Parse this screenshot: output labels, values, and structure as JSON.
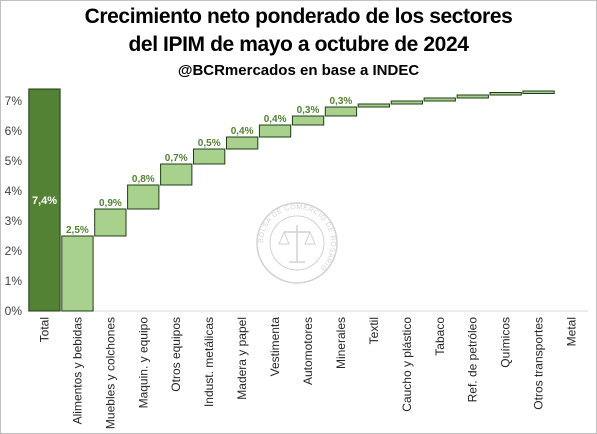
{
  "title_line1": "Crecimiento neto ponderado de los sectores",
  "title_line2": "del IPIM de mayo a octubre de 2024",
  "subtitle": "@BCRmercados en base a INDEC",
  "watermark": {
    "logo": "seal-icon",
    "text": "BOLSA DE COMERCIO DE ROSARIO"
  },
  "colors": {
    "total_bar": "#548235",
    "step_bar": "#a9d18e",
    "bar_border": "#1e3d14",
    "label": "#538135"
  },
  "chart_data": {
    "type": "bar",
    "subtype": "waterfall",
    "title": "Crecimiento neto ponderado de los sectores del IPIM de mayo a octubre de 2024",
    "subtitle": "@BCRmercados en base a INDEC",
    "xlabel": "",
    "ylabel": "",
    "ylim": [
      0,
      7.5
    ],
    "yticks": [
      "0%",
      "1%",
      "2%",
      "3%",
      "4%",
      "5%",
      "6%",
      "7%"
    ],
    "grid": false,
    "legend": "none",
    "categories": [
      "Total",
      "Alimentos y bebidas",
      "Muebles y colchones",
      "Maquin. y equipo",
      "Otros equipos",
      "Indust. metálicas",
      "Madera y papel",
      "Vestimenta",
      "Automotores",
      "Minerales",
      "Textil",
      "Caucho y plástico",
      "Tabaco",
      "Ref. de petróleo",
      "Químicos",
      "Otros transportes",
      "Metal"
    ],
    "values": [
      7.4,
      2.5,
      0.9,
      0.8,
      0.7,
      0.5,
      0.4,
      0.4,
      0.3,
      0.3,
      0.1,
      0.1,
      0.1,
      0.1,
      0.05,
      0.05,
      0.0
    ],
    "bases": [
      0,
      0,
      2.5,
      3.4,
      4.2,
      4.9,
      5.4,
      5.8,
      6.2,
      6.5,
      6.8,
      6.9,
      7.0,
      7.1,
      7.2,
      7.25,
      7.3
    ],
    "data_labels": [
      "7,4%",
      "2,5%",
      "0,9%",
      "0,8%",
      "0,7%",
      "0,5%",
      "0,4%",
      "0,4%",
      "0,3%",
      "0,3%",
      "",
      "",
      "",
      "",
      "",
      "",
      ""
    ]
  }
}
